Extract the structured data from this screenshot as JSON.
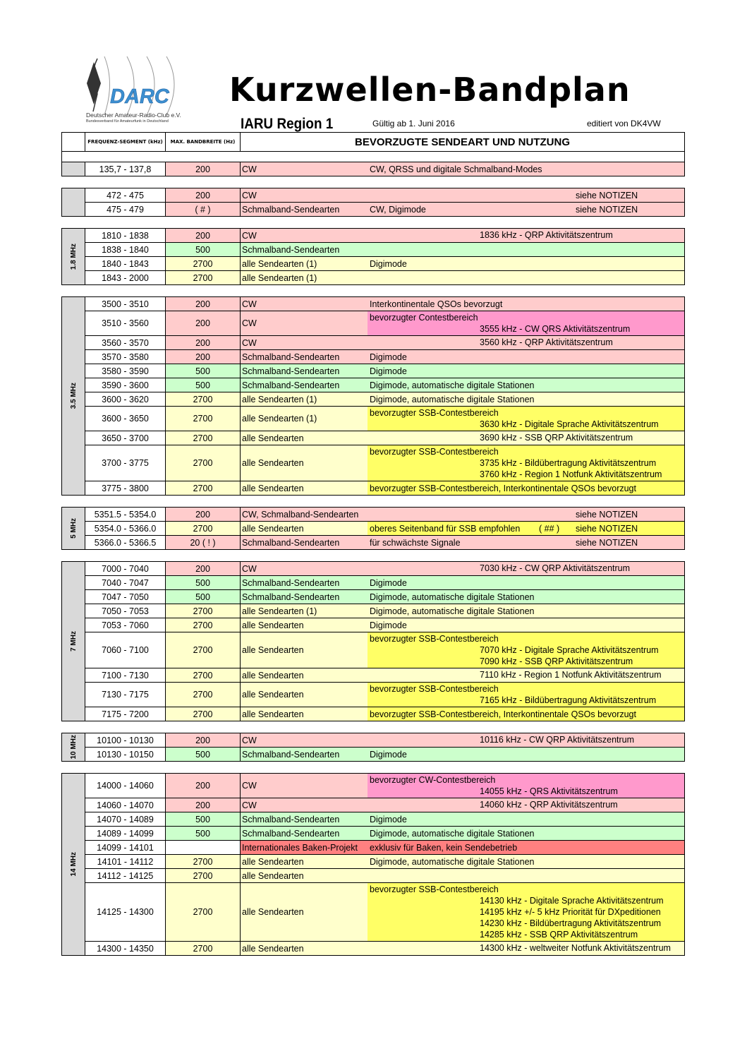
{
  "logo": {
    "text": "DARC",
    "side_letters": "DARC",
    "club": "Deutscher Amateur-Radio-Club e.V.",
    "sub": "Bundesverband für Amateurfunk in Deutschland"
  },
  "header": {
    "title": "Kurzwellen-Bandplan",
    "region": "IARU Region 1",
    "valid": "Gültig ab 1. Juni 2016",
    "editor": "editiert von DK4VW"
  },
  "columns": {
    "freq": "FREQUENZ-SEGMENT (kHz)",
    "bw": "MAX. BANDBREITE (Hz)",
    "usage": "BEVORZUGTE SENDEART UND NUTZUNG"
  },
  "colors": {
    "pink": "#ffcccc",
    "green": "#ccffcc",
    "lightyellow": "#ffffcc",
    "yellow": "#ffff66",
    "magenta": "#ff99cc",
    "red": "#ff8080"
  },
  "groups": [
    {
      "band": "",
      "rows": [
        {
          "freq": "135,7 - 137,8",
          "bw": "200",
          "mode": "CW",
          "color": "pink",
          "usage": "CW, QRSS und digitale Schmalband-Modes"
        }
      ]
    },
    {
      "band": "",
      "rows": [
        {
          "freq": "472 - 475",
          "bw": "200",
          "mode": "CW",
          "color": "pink",
          "note": "siehe NOTIZEN"
        },
        {
          "freq": "475 - 479",
          "bw": "( # )",
          "mode": "Schmalband-Sendearten",
          "color": "pink",
          "usage": "CW, Digimode",
          "note": "siehe NOTIZEN"
        }
      ]
    },
    {
      "band": "1.8 MHz",
      "rows": [
        {
          "freq": "1810 - 1838",
          "bw": "200",
          "mode": "CW",
          "color": "pink",
          "centers": [
            "1836 kHz - QRP Aktivitätszentrum"
          ]
        },
        {
          "freq": "1838 - 1840",
          "bw": "500",
          "mode": "Schmalband-Sendearten",
          "color": "green"
        },
        {
          "freq": "1840 - 1843",
          "bw": "2700",
          "mode": "alle Sendearten  (1)",
          "color": "lightyellow",
          "usage": "Digimode"
        },
        {
          "freq": "1843 - 2000",
          "bw": "2700",
          "mode": "alle Sendearten  (1)",
          "color": "lightyellow"
        }
      ]
    },
    {
      "band": "3.5 MHz",
      "rows": [
        {
          "freq": "3500 - 3510",
          "bw": "200",
          "mode": "CW",
          "color": "pink",
          "usage": "Interkontinentale QSOs bevorzugt"
        },
        {
          "freq": "3510 - 3560",
          "bw": "200",
          "mode": "CW",
          "color": "pink",
          "usage_color": "magenta",
          "usage": "bevorzugter Contestbereich",
          "centers": [
            "3555 kHz - CW QRS Aktivitätszentrum"
          ]
        },
        {
          "freq": "3560 - 3570",
          "bw": "200",
          "mode": "CW",
          "color": "pink",
          "centers": [
            "3560 kHz - QRP Aktivitätszentrum"
          ]
        },
        {
          "freq": "3570 - 3580",
          "bw": "200",
          "mode": "Schmalband-Sendearten",
          "color": "pink",
          "usage": "Digimode"
        },
        {
          "freq": "3580 - 3590",
          "bw": "500",
          "mode": "Schmalband-Sendearten",
          "color": "green",
          "usage": "Digimode"
        },
        {
          "freq": "3590 - 3600",
          "bw": "500",
          "mode": "Schmalband-Sendearten",
          "color": "green",
          "usage": "Digimode,  automatische digitale Stationen"
        },
        {
          "freq": "3600 - 3620",
          "bw": "2700",
          "mode": "alle Sendearten  (1)",
          "color": "lightyellow",
          "usage": "Digimode,  automatische digitale Stationen"
        },
        {
          "freq": "3600 - 3650",
          "bw": "2700",
          "mode": "alle Sendearten  (1)",
          "color": "lightyellow",
          "usage_color": "yellow",
          "usage": "bevorzugter SSB-Contestbereich",
          "centers": [
            "3630 kHz - Digitale Sprache Aktivitätszentrum"
          ]
        },
        {
          "freq": "3650 - 3700",
          "bw": "2700",
          "mode": "alle Sendearten",
          "color": "lightyellow",
          "centers": [
            "3690 kHz - SSB QRP Aktivitätszentrum"
          ]
        },
        {
          "freq": "3700 - 3775",
          "bw": "2700",
          "mode": "alle Sendearten",
          "color": "lightyellow",
          "usage_color": "yellow",
          "usage": "bevorzugter SSB-Contestbereich",
          "centers": [
            "3735 kHz - Bildübertragung Aktivitätszentrum",
            "3760 kHz - Region 1 Notfunk Aktivitätszentrum"
          ]
        },
        {
          "freq": "3775 - 3800",
          "bw": "2700",
          "mode": "alle Sendearten",
          "color": "lightyellow",
          "usage_color": "yellow",
          "usage": "bevorzugter SSB-Contestbereich, Interkontinentale QSOs bevorzugt"
        }
      ]
    },
    {
      "band": "5 MHz",
      "rows": [
        {
          "freq": "5351.5 - 5354.0",
          "bw": "200",
          "mode": "CW, Schmalband-Sendearten",
          "color": "pink",
          "note": "siehe NOTIZEN"
        },
        {
          "freq": "5354.0 - 5366.0",
          "bw": "2700",
          "mode": "alle Sendearten",
          "color": "lightyellow",
          "usage_color": "yellow",
          "usage": "oberes Seitenband für SSB empfohlen",
          "marker": "( ## )",
          "note": "siehe NOTIZEN"
        },
        {
          "freq": "5366.0 - 5366.5",
          "bw": "20 ( ! )",
          "mode": "Schmalband-Sendearten",
          "color": "pink",
          "usage": "für schwächste Signale",
          "note": "siehe NOTIZEN"
        }
      ]
    },
    {
      "band": "7 MHz",
      "rows": [
        {
          "freq": "7000 - 7040",
          "bw": "200",
          "mode": "CW",
          "color": "pink",
          "centers": [
            "7030 kHz - CW QRP Aktivitätszentrum"
          ]
        },
        {
          "freq": "7040 - 7047",
          "bw": "500",
          "mode": "Schmalband-Sendearten",
          "color": "green",
          "usage": "Digimode"
        },
        {
          "freq": "7047 - 7050",
          "bw": "500",
          "mode": "Schmalband-Sendearten",
          "color": "green",
          "usage": "Digimode, automatische digitale Stationen"
        },
        {
          "freq": "7050 - 7053",
          "bw": "2700",
          "mode": "alle Sendearten  (1)",
          "color": "lightyellow",
          "usage": "Digimode, automatische digitale Stationen"
        },
        {
          "freq": "7053 - 7060",
          "bw": "2700",
          "mode": "alle Sendearten",
          "color": "lightyellow",
          "usage": "Digimode"
        },
        {
          "freq": "7060 - 7100",
          "bw": "2700",
          "mode": "alle Sendearten",
          "color": "lightyellow",
          "usage_color": "yellow",
          "usage": "bevorzugter SSB-Contestbereich",
          "centers": [
            "7070 kHz - Digitale Sprache Aktivitätszentrum",
            "7090 kHz - SSB QRP Aktivitätszentrum"
          ]
        },
        {
          "freq": "7100 - 7130",
          "bw": "2700",
          "mode": "alle Sendearten",
          "color": "lightyellow",
          "centers": [
            "7110 kHz - Region 1 Notfunk Aktivitätszentrum"
          ]
        },
        {
          "freq": "7130 - 7175",
          "bw": "2700",
          "mode": "alle Sendearten",
          "color": "lightyellow",
          "usage_color": "yellow",
          "usage": "bevorzugter SSB-Contestbereich",
          "centers": [
            "7165 kHz  - Bildübertragung Aktivitätszentrum"
          ]
        },
        {
          "freq": "7175 - 7200",
          "bw": "2700",
          "mode": "alle Sendearten",
          "color": "lightyellow",
          "usage_color": "yellow",
          "usage": "bevorzugter SSB-Contestbereich, Interkontinentale QSOs bevorzugt"
        }
      ]
    },
    {
      "band": "10 MHz",
      "rows": [
        {
          "freq": "10100 - 10130",
          "bw": "200",
          "mode": "CW",
          "color": "pink",
          "centers": [
            "10116 kHz - CW QRP Aktivitätszentrum"
          ]
        },
        {
          "freq": "10130 - 10150",
          "bw": "500",
          "mode": "Schmalband-Sendearten",
          "color": "green",
          "usage": "Digimode"
        }
      ]
    },
    {
      "band": "14 MHz",
      "rows": [
        {
          "freq": "14000 - 14060",
          "bw": "200",
          "mode": "CW",
          "color": "pink",
          "usage_color": "magenta",
          "usage": "bevorzugter CW-Contestbereich",
          "centers": [
            "14055 kHz - QRS Aktivitätszentrum"
          ]
        },
        {
          "freq": "14060 - 14070",
          "bw": "200",
          "mode": "CW",
          "color": "pink",
          "centers": [
            "14060 kHz - QRP Aktivitätszentrum"
          ]
        },
        {
          "freq": "14070 - 14089",
          "bw": "500",
          "mode": "Schmalband-Sendearten",
          "color": "green",
          "usage": "Digimode"
        },
        {
          "freq": "14089 - 14099",
          "bw": "500",
          "mode": "Schmalband-Sendearten",
          "color": "green",
          "usage": "Digimode,  automatische digitale Stationen"
        },
        {
          "freq": "14099 - 14101",
          "bw": "",
          "bw_color": "white",
          "mode": "Internationales Baken-Projekt",
          "color": "red",
          "usage": "exklusiv für Baken, kein Sendebetrieb"
        },
        {
          "freq": "14101 - 14112",
          "bw": "2700",
          "mode": "alle Sendearten",
          "color": "lightyellow",
          "usage": "Digimode,  automatische digitale Stationen"
        },
        {
          "freq": "14112 - 14125",
          "bw": "2700",
          "mode": "alle Sendearten",
          "color": "lightyellow"
        },
        {
          "freq": "14125 - 14300",
          "bw": "2700",
          "mode": "alle Sendearten",
          "color": "lightyellow",
          "usage_color": "yellow",
          "usage": "bevorzugter SSB-Contestbereich",
          "centers": [
            "14130 kHz - Digitale Sprache Aktivitätszentrum",
            "14195 kHz +/- 5 kHz Priorität für DXpeditionen",
            "14230 kHz - Bildübertragung Aktivitätszentrum",
            "14285 kHz - SSB QRP Aktivitätszentrum"
          ]
        },
        {
          "freq": "14300 - 14350",
          "bw": "2700",
          "mode": "alle Sendearten",
          "color": "lightyellow",
          "centers": [
            "14300 kHz - weltweiter Notfunk Aktivitätszentrum"
          ]
        }
      ]
    }
  ]
}
